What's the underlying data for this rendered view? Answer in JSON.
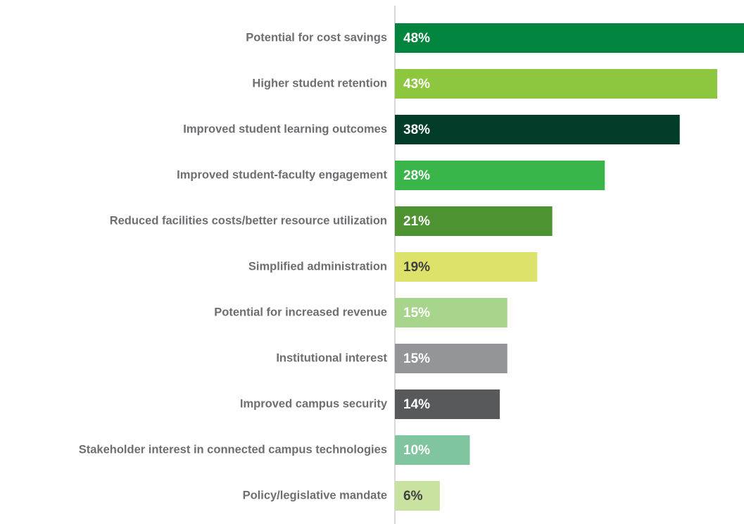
{
  "chart_data": {
    "type": "bar",
    "orientation": "horizontal",
    "categories": [
      "Potential for cost savings",
      "Higher student retention",
      "Improved student learning outcomes",
      "Improved student-faculty engagement",
      "Reduced facilities costs/better resource utilization",
      "Simplified administration",
      "Potential for increased revenue",
      "Institutional interest",
      "Improved campus security",
      "Stakeholder interest in connected campus technologies",
      "Policy/legislative mandate"
    ],
    "values": [
      48,
      43,
      38,
      28,
      21,
      19,
      15,
      15,
      14,
      10,
      6
    ],
    "value_labels": [
      "48%",
      "43%",
      "38%",
      "28%",
      "21%",
      "19%",
      "15%",
      "15%",
      "14%",
      "10%",
      "6%"
    ],
    "colors": [
      "#00853f",
      "#8dc63f",
      "#003c28",
      "#39b54a",
      "#4e9331",
      "#dde26a",
      "#a8d58c",
      "#939598",
      "#58595b",
      "#80c4a0",
      "#c9e29f"
    ],
    "value_label_colors": [
      "#ffffff",
      "#ffffff",
      "#ffffff",
      "#ffffff",
      "#ffffff",
      "#404041",
      "#ffffff",
      "#ffffff",
      "#ffffff",
      "#ffffff",
      "#404041"
    ]
  }
}
